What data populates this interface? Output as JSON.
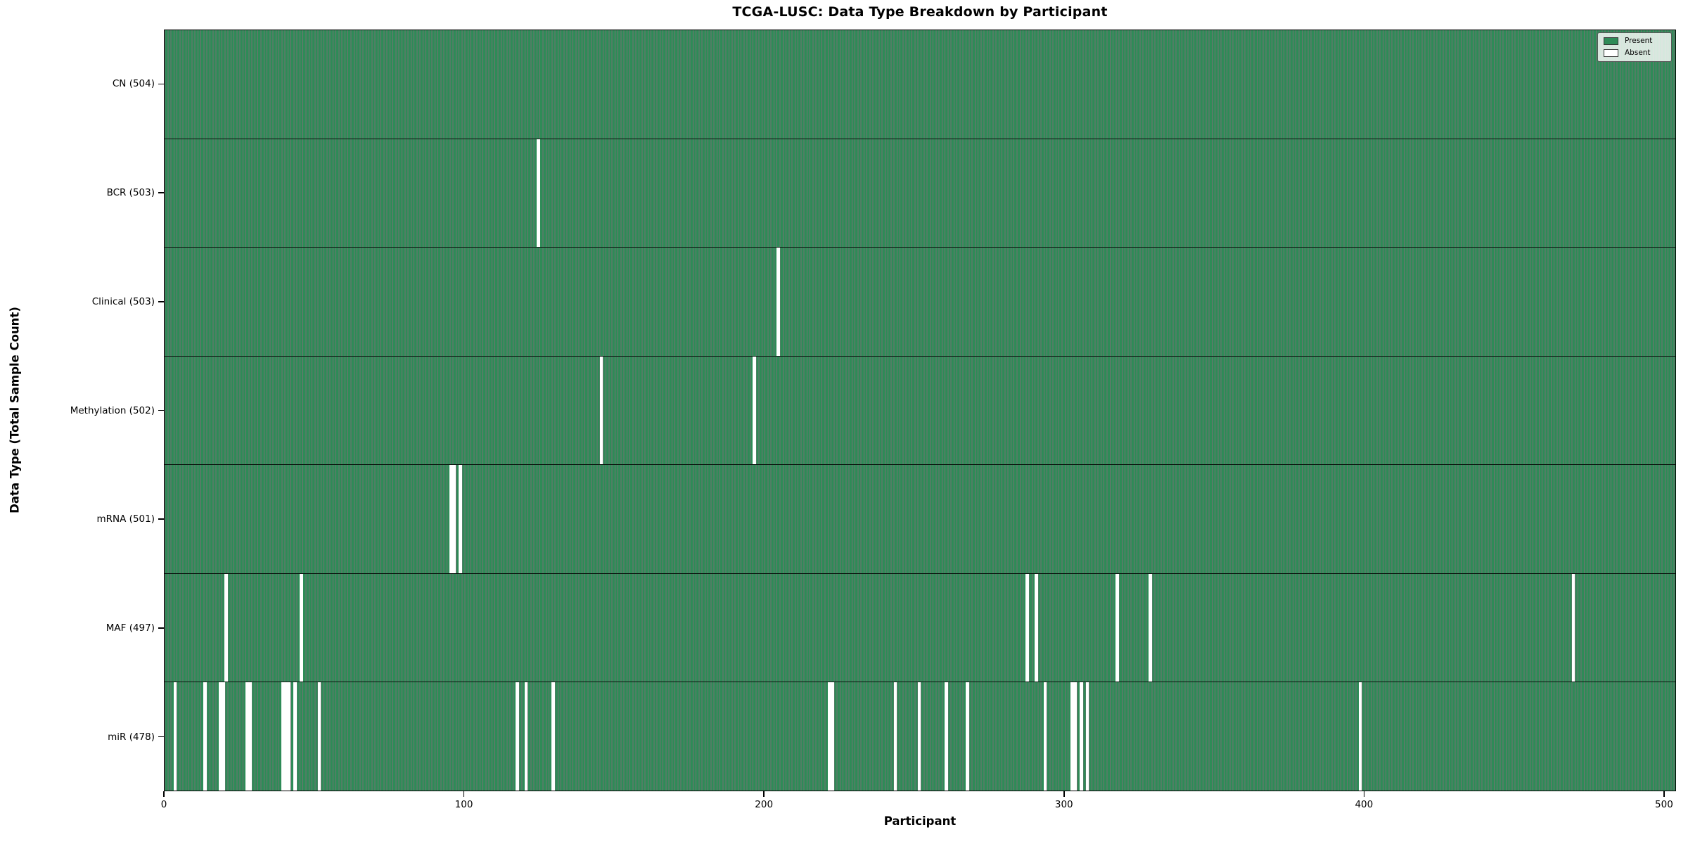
{
  "chart_data": {
    "type": "heatmap",
    "title": "TCGA-LUSC: Data Type Breakdown by Participant",
    "xlabel": "Participant",
    "ylabel": "Data Type (Total Sample Count)",
    "xlim": [
      0,
      504
    ],
    "n_participants": 504,
    "x_ticks": [
      0,
      100,
      200,
      300,
      400,
      500
    ],
    "grid": false,
    "legend": {
      "position": "upper right",
      "items": [
        {
          "label": "Present",
          "color": "#2e8b57"
        },
        {
          "label": "Absent",
          "color": "#ffffff"
        }
      ]
    },
    "colors": {
      "present": "#2e8b57",
      "absent": "#ffffff",
      "bar_edge": "rgba(0,0,0,0.55)",
      "spine": "#000000"
    },
    "rows": [
      {
        "data_type": "CN",
        "label": "CN (504)",
        "present_count": 504,
        "absent_participants": []
      },
      {
        "data_type": "BCR",
        "label": "BCR (503)",
        "present_count": 503,
        "absent_participants": [
          124
        ]
      },
      {
        "data_type": "Clinical",
        "label": "Clinical (503)",
        "present_count": 503,
        "absent_participants": [
          204
        ]
      },
      {
        "data_type": "Methylation",
        "label": "Methylation (502)",
        "present_count": 502,
        "absent_participants": [
          145,
          196
        ]
      },
      {
        "data_type": "mRNA",
        "label": "mRNA (501)",
        "present_count": 501,
        "absent_participants": [
          95,
          96,
          98
        ]
      },
      {
        "data_type": "MAF",
        "label": "MAF (497)",
        "present_count": 497,
        "absent_participants": [
          20,
          45,
          287,
          290,
          317,
          328,
          469
        ]
      },
      {
        "data_type": "miR",
        "label": "miR (478)",
        "present_count": 478,
        "absent_participants": [
          3,
          13,
          18,
          19,
          27,
          28,
          39,
          40,
          41,
          43,
          51,
          117,
          120,
          129,
          221,
          222,
          243,
          251,
          260,
          267,
          293,
          302,
          303,
          305,
          307,
          398
        ]
      }
    ]
  }
}
